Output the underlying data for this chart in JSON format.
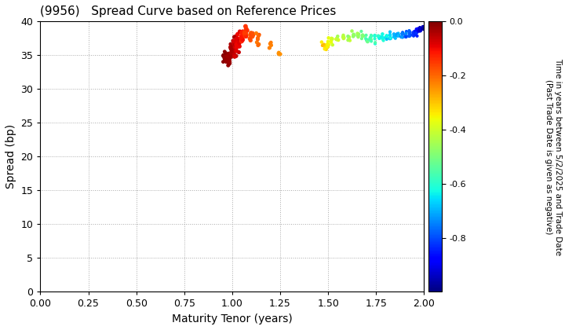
{
  "title": "(9956)   Spread Curve based on Reference Prices",
  "xlabel": "Maturity Tenor (years)",
  "ylabel": "Spread (bp)",
  "colorbar_label": "Time in years between 5/2/2025 and Trade Date\n(Past Trade Date is given as negative)",
  "xlim": [
    0.0,
    2.0
  ],
  "ylim": [
    0,
    40
  ],
  "xticks": [
    0.0,
    0.25,
    0.5,
    0.75,
    1.0,
    1.25,
    1.5,
    1.75,
    2.0
  ],
  "yticks": [
    0,
    5,
    10,
    15,
    20,
    25,
    30,
    35,
    40
  ],
  "colorbar_ticks": [
    0.0,
    -0.2,
    -0.4,
    -0.6,
    -0.8
  ],
  "cmap": "jet",
  "vmin": -1.0,
  "vmax": 0.0,
  "background_color": "#ffffff",
  "grid_color": "#aaaaaa",
  "point_groups": [
    {
      "tenor_mean": 0.955,
      "tenor_std": 0.008,
      "spread_mean": 34.8,
      "spread_std": 0.4,
      "color_mean": -0.01,
      "color_std": 0.005,
      "n": 8,
      "size": 6
    },
    {
      "tenor_mean": 0.968,
      "tenor_std": 0.006,
      "spread_mean": 35.0,
      "spread_std": 0.5,
      "color_mean": -0.015,
      "color_std": 0.005,
      "n": 12,
      "size": 6
    },
    {
      "tenor_mean": 0.975,
      "tenor_std": 0.005,
      "spread_mean": 34.5,
      "spread_std": 0.5,
      "color_mean": -0.02,
      "color_std": 0.005,
      "n": 15,
      "size": 7
    },
    {
      "tenor_mean": 0.985,
      "tenor_std": 0.005,
      "spread_mean": 34.3,
      "spread_std": 0.4,
      "color_mean": -0.025,
      "color_std": 0.005,
      "n": 12,
      "size": 7
    },
    {
      "tenor_mean": 1.0,
      "tenor_std": 0.006,
      "spread_mean": 35.5,
      "spread_std": 0.6,
      "color_mean": -0.04,
      "color_std": 0.01,
      "n": 20,
      "size": 7
    },
    {
      "tenor_mean": 1.015,
      "tenor_std": 0.005,
      "spread_mean": 36.2,
      "spread_std": 0.7,
      "color_mean": -0.06,
      "color_std": 0.01,
      "n": 18,
      "size": 8
    },
    {
      "tenor_mean": 1.03,
      "tenor_std": 0.006,
      "spread_mean": 37.0,
      "spread_std": 0.7,
      "color_mean": -0.09,
      "color_std": 0.01,
      "n": 18,
      "size": 9
    },
    {
      "tenor_mean": 1.05,
      "tenor_std": 0.005,
      "spread_mean": 37.8,
      "spread_std": 0.6,
      "color_mean": -0.12,
      "color_std": 0.01,
      "n": 15,
      "size": 10
    },
    {
      "tenor_mean": 1.07,
      "tenor_std": 0.005,
      "spread_mean": 38.2,
      "spread_std": 0.5,
      "color_mean": -0.15,
      "color_std": 0.01,
      "n": 12,
      "size": 10
    },
    {
      "tenor_mean": 1.1,
      "tenor_std": 0.005,
      "spread_mean": 38.0,
      "spread_std": 0.5,
      "color_mean": -0.18,
      "color_std": 0.01,
      "n": 10,
      "size": 8
    },
    {
      "tenor_mean": 1.13,
      "tenor_std": 0.005,
      "spread_mean": 37.5,
      "spread_std": 0.5,
      "color_mean": -0.2,
      "color_std": 0.01,
      "n": 8,
      "size": 7
    },
    {
      "tenor_mean": 1.2,
      "tenor_std": 0.005,
      "spread_mean": 36.5,
      "spread_std": 0.4,
      "color_mean": -0.22,
      "color_std": 0.01,
      "n": 5,
      "size": 6
    },
    {
      "tenor_mean": 1.245,
      "tenor_std": 0.003,
      "spread_mean": 35.2,
      "spread_std": 0.3,
      "color_mean": -0.24,
      "color_std": 0.01,
      "n": 4,
      "size": 6
    },
    {
      "tenor_mean": 1.48,
      "tenor_std": 0.006,
      "spread_mean": 36.5,
      "spread_std": 0.4,
      "color_mean": -0.32,
      "color_std": 0.02,
      "n": 8,
      "size": 5
    },
    {
      "tenor_mean": 1.5,
      "tenor_std": 0.004,
      "spread_mean": 36.8,
      "spread_std": 0.4,
      "color_mean": -0.35,
      "color_std": 0.02,
      "n": 6,
      "size": 5
    },
    {
      "tenor_mean": 1.52,
      "tenor_std": 0.004,
      "spread_mean": 37.2,
      "spread_std": 0.4,
      "color_mean": -0.37,
      "color_std": 0.02,
      "n": 5,
      "size": 5
    },
    {
      "tenor_mean": 1.55,
      "tenor_std": 0.005,
      "spread_mean": 37.5,
      "spread_std": 0.3,
      "color_mean": -0.4,
      "color_std": 0.02,
      "n": 6,
      "size": 5
    },
    {
      "tenor_mean": 1.58,
      "tenor_std": 0.004,
      "spread_mean": 37.6,
      "spread_std": 0.3,
      "color_mean": -0.42,
      "color_std": 0.02,
      "n": 5,
      "size": 5
    },
    {
      "tenor_mean": 1.605,
      "tenor_std": 0.004,
      "spread_mean": 37.8,
      "spread_std": 0.3,
      "color_mean": -0.44,
      "color_std": 0.02,
      "n": 5,
      "size": 5
    },
    {
      "tenor_mean": 1.63,
      "tenor_std": 0.004,
      "spread_mean": 37.9,
      "spread_std": 0.3,
      "color_mean": -0.47,
      "color_std": 0.02,
      "n": 5,
      "size": 5
    },
    {
      "tenor_mean": 1.655,
      "tenor_std": 0.004,
      "spread_mean": 38.0,
      "spread_std": 0.3,
      "color_mean": -0.49,
      "color_std": 0.02,
      "n": 5,
      "size": 5
    },
    {
      "tenor_mean": 1.68,
      "tenor_std": 0.004,
      "spread_mean": 37.8,
      "spread_std": 0.3,
      "color_mean": -0.52,
      "color_std": 0.02,
      "n": 6,
      "size": 4
    },
    {
      "tenor_mean": 1.7,
      "tenor_std": 0.004,
      "spread_mean": 37.5,
      "spread_std": 0.3,
      "color_mean": -0.55,
      "color_std": 0.02,
      "n": 6,
      "size": 4
    },
    {
      "tenor_mean": 1.725,
      "tenor_std": 0.004,
      "spread_mean": 37.4,
      "spread_std": 0.3,
      "color_mean": -0.57,
      "color_std": 0.02,
      "n": 6,
      "size": 4
    },
    {
      "tenor_mean": 1.745,
      "tenor_std": 0.004,
      "spread_mean": 37.5,
      "spread_std": 0.3,
      "color_mean": -0.59,
      "color_std": 0.02,
      "n": 6,
      "size": 4
    },
    {
      "tenor_mean": 1.765,
      "tenor_std": 0.003,
      "spread_mean": 37.6,
      "spread_std": 0.25,
      "color_mean": -0.61,
      "color_std": 0.02,
      "n": 7,
      "size": 4
    },
    {
      "tenor_mean": 1.785,
      "tenor_std": 0.003,
      "spread_mean": 37.7,
      "spread_std": 0.25,
      "color_mean": -0.63,
      "color_std": 0.02,
      "n": 7,
      "size": 4
    },
    {
      "tenor_mean": 1.805,
      "tenor_std": 0.003,
      "spread_mean": 37.8,
      "spread_std": 0.25,
      "color_mean": -0.65,
      "color_std": 0.02,
      "n": 7,
      "size": 4
    },
    {
      "tenor_mean": 1.825,
      "tenor_std": 0.003,
      "spread_mean": 37.8,
      "spread_std": 0.25,
      "color_mean": -0.68,
      "color_std": 0.02,
      "n": 8,
      "size": 4
    },
    {
      "tenor_mean": 1.845,
      "tenor_std": 0.003,
      "spread_mean": 37.9,
      "spread_std": 0.25,
      "color_mean": -0.7,
      "color_std": 0.02,
      "n": 8,
      "size": 4
    },
    {
      "tenor_mean": 1.865,
      "tenor_std": 0.003,
      "spread_mean": 38.0,
      "spread_std": 0.25,
      "color_mean": -0.72,
      "color_std": 0.02,
      "n": 8,
      "size": 4
    },
    {
      "tenor_mean": 1.885,
      "tenor_std": 0.003,
      "spread_mean": 37.8,
      "spread_std": 0.25,
      "color_mean": -0.75,
      "color_std": 0.02,
      "n": 8,
      "size": 4
    },
    {
      "tenor_mean": 1.905,
      "tenor_std": 0.003,
      "spread_mean": 37.9,
      "spread_std": 0.25,
      "color_mean": -0.78,
      "color_std": 0.02,
      "n": 9,
      "size": 4
    },
    {
      "tenor_mean": 1.925,
      "tenor_std": 0.003,
      "spread_mean": 38.0,
      "spread_std": 0.25,
      "color_mean": -0.8,
      "color_std": 0.02,
      "n": 9,
      "size": 4
    },
    {
      "tenor_mean": 1.945,
      "tenor_std": 0.003,
      "spread_mean": 38.2,
      "spread_std": 0.25,
      "color_mean": -0.83,
      "color_std": 0.02,
      "n": 9,
      "size": 4
    },
    {
      "tenor_mean": 1.96,
      "tenor_std": 0.003,
      "spread_mean": 38.4,
      "spread_std": 0.25,
      "color_mean": -0.86,
      "color_std": 0.02,
      "n": 9,
      "size": 4
    },
    {
      "tenor_mean": 1.972,
      "tenor_std": 0.003,
      "spread_mean": 38.6,
      "spread_std": 0.25,
      "color_mean": -0.89,
      "color_std": 0.02,
      "n": 9,
      "size": 4
    },
    {
      "tenor_mean": 1.983,
      "tenor_std": 0.003,
      "spread_mean": 38.8,
      "spread_std": 0.2,
      "color_mean": -0.92,
      "color_std": 0.02,
      "n": 8,
      "size": 4
    },
    {
      "tenor_mean": 1.993,
      "tenor_std": 0.002,
      "spread_mean": 39.0,
      "spread_std": 0.2,
      "color_mean": -0.96,
      "color_std": 0.02,
      "n": 7,
      "size": 5
    }
  ]
}
